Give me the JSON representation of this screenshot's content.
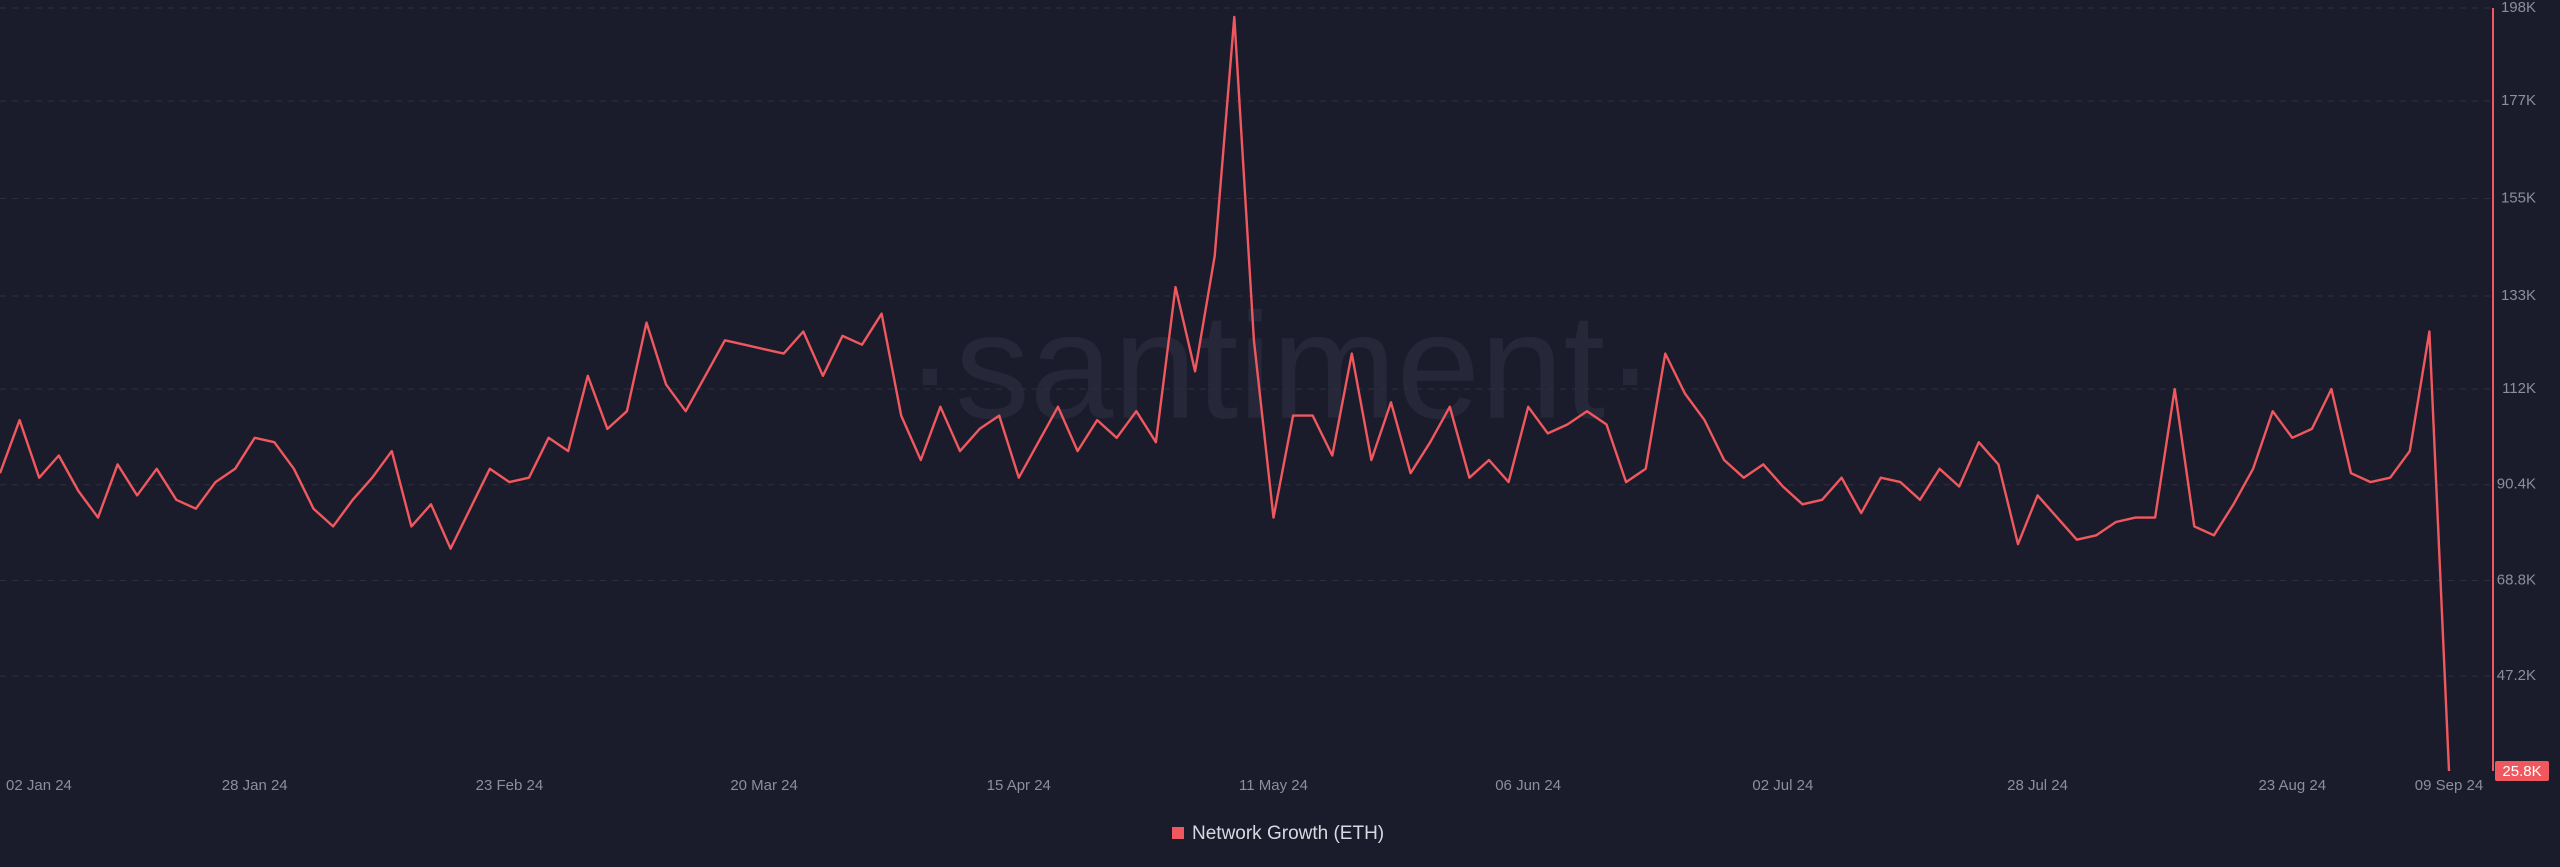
{
  "chart_data": {
    "type": "line",
    "watermark": "·santiment·",
    "categories": [
      "02 Jan 24",
      null,
      null,
      null,
      null,
      null,
      null,
      null,
      null,
      null,
      null,
      null,
      null,
      "28 Jan 24",
      null,
      null,
      null,
      null,
      null,
      null,
      null,
      null,
      null,
      null,
      null,
      null,
      "23 Feb 24",
      null,
      null,
      null,
      null,
      null,
      null,
      null,
      null,
      null,
      null,
      null,
      null,
      "20 Mar 24",
      null,
      null,
      null,
      null,
      null,
      null,
      null,
      null,
      null,
      null,
      null,
      null,
      "15 Apr 24",
      null,
      null,
      null,
      null,
      null,
      null,
      null,
      null,
      null,
      null,
      null,
      null,
      "11 May 24",
      null,
      null,
      null,
      null,
      null,
      null,
      null,
      null,
      null,
      null,
      null,
      null,
      "06 Jun 24",
      null,
      null,
      null,
      null,
      null,
      null,
      null,
      null,
      null,
      null,
      null,
      null,
      "02 Jul 24",
      null,
      null,
      null,
      null,
      null,
      null,
      null,
      null,
      null,
      null,
      null,
      null,
      "28 Jul 24",
      null,
      null,
      null,
      null,
      null,
      null,
      null,
      null,
      null,
      null,
      null,
      null,
      "23 Aug 24",
      null,
      null,
      null,
      null,
      null,
      null,
      null,
      "09 Sep 24"
    ],
    "series": [
      {
        "name": "Network Growth (ETH)",
        "color": "#f0585f",
        "last_label": "25.8K",
        "values": [
          93000,
          105000,
          92000,
          97000,
          89000,
          83000,
          95000,
          88000,
          94000,
          87000,
          85000,
          91000,
          94000,
          101000,
          100000,
          94000,
          85000,
          81000,
          87000,
          92000,
          98000,
          81000,
          86000,
          76000,
          85000,
          94000,
          91000,
          92000,
          101000,
          98000,
          115000,
          103000,
          107000,
          127000,
          113000,
          107000,
          115000,
          123000,
          122000,
          121000,
          120000,
          125000,
          115000,
          124000,
          122000,
          129000,
          106000,
          96000,
          108000,
          98000,
          103000,
          106000,
          92000,
          100000,
          108000,
          98000,
          105000,
          101000,
          107000,
          100000,
          135000,
          116000,
          142000,
          196000,
          123000,
          83000,
          106000,
          106000,
          97000,
          120000,
          96000,
          109000,
          93000,
          100000,
          108000,
          92000,
          96000,
          91000,
          108000,
          102000,
          104000,
          107000,
          104000,
          91000,
          94000,
          120000,
          111000,
          105000,
          96000,
          92000,
          95000,
          90000,
          86000,
          87000,
          92000,
          84000,
          92000,
          91000,
          87000,
          94000,
          90000,
          100000,
          95000,
          77000,
          88000,
          83000,
          78000,
          79000,
          82000,
          83000,
          83000,
          112000,
          81000,
          79000,
          86000,
          94000,
          107000,
          101000,
          103000,
          112000,
          93000,
          91000,
          92000,
          98000,
          125000,
          25800
        ]
      }
    ],
    "ylim": [
      25800,
      198000
    ],
    "yticks": [
      {
        "value": 47200,
        "label": "47.2K"
      },
      {
        "value": 68800,
        "label": "68.8K"
      },
      {
        "value": 90400,
        "label": "90.4K"
      },
      {
        "value": 112000,
        "label": "112K"
      },
      {
        "value": 133000,
        "label": "133K"
      },
      {
        "value": 155000,
        "label": "155K"
      },
      {
        "value": 177000,
        "label": "177K"
      },
      {
        "value": 198000,
        "label": "198K"
      }
    ],
    "grid": true
  }
}
